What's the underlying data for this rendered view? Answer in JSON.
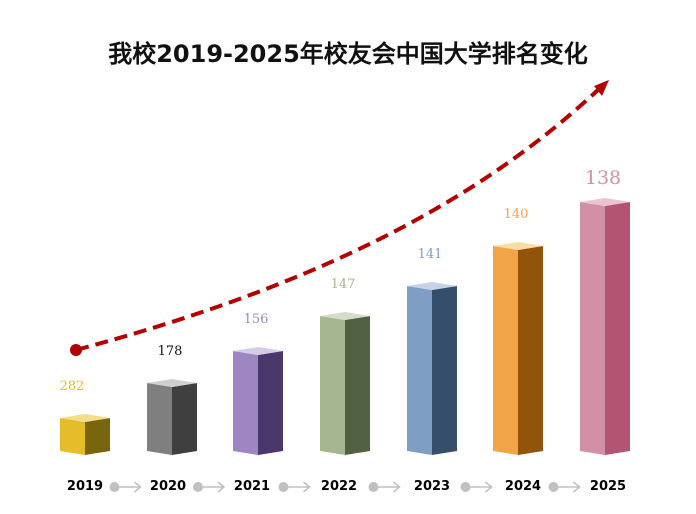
{
  "chart_data": {
    "type": "bar",
    "title": "我校2019-2025年校友会中国大学排名变化",
    "categories": [
      "2019",
      "2020",
      "2021",
      "2022",
      "2023",
      "2024",
      "2025"
    ],
    "values": [
      282,
      178,
      156,
      147,
      141,
      140,
      138
    ],
    "xlabel": "",
    "ylabel": "",
    "grid": false,
    "legend": "none",
    "style": "3d-bars with dashed red trend arrow rising left to right",
    "colors": [
      {
        "front": "#e5bc2a",
        "side": "#7a650f",
        "top": "#f3dc8a",
        "label": "#e5bc2a"
      },
      {
        "front": "#7f7f7f",
        "side": "#3f3f3f",
        "top": "#cfcfcf",
        "label": "#111111"
      },
      {
        "front": "#9e86c2",
        "side": "#4a376b",
        "top": "#d6cbe6",
        "label": "#9e86c2"
      },
      {
        "front": "#a5b690",
        "side": "#536143",
        "top": "#d4ddc8",
        "label": "#a5b690"
      },
      {
        "front": "#7f9ec3",
        "side": "#354e6c",
        "top": "#c4d3e5",
        "label": "#7f9ec3"
      },
      {
        "front": "#f2a448",
        "side": "#92530a",
        "top": "#f8dca2",
        "label": "#f2a448"
      },
      {
        "front": "#d190a6",
        "side": "#b45473",
        "top": "#ebc3d1",
        "label": "#d190a6"
      }
    ],
    "trend_color": "#b30000"
  }
}
